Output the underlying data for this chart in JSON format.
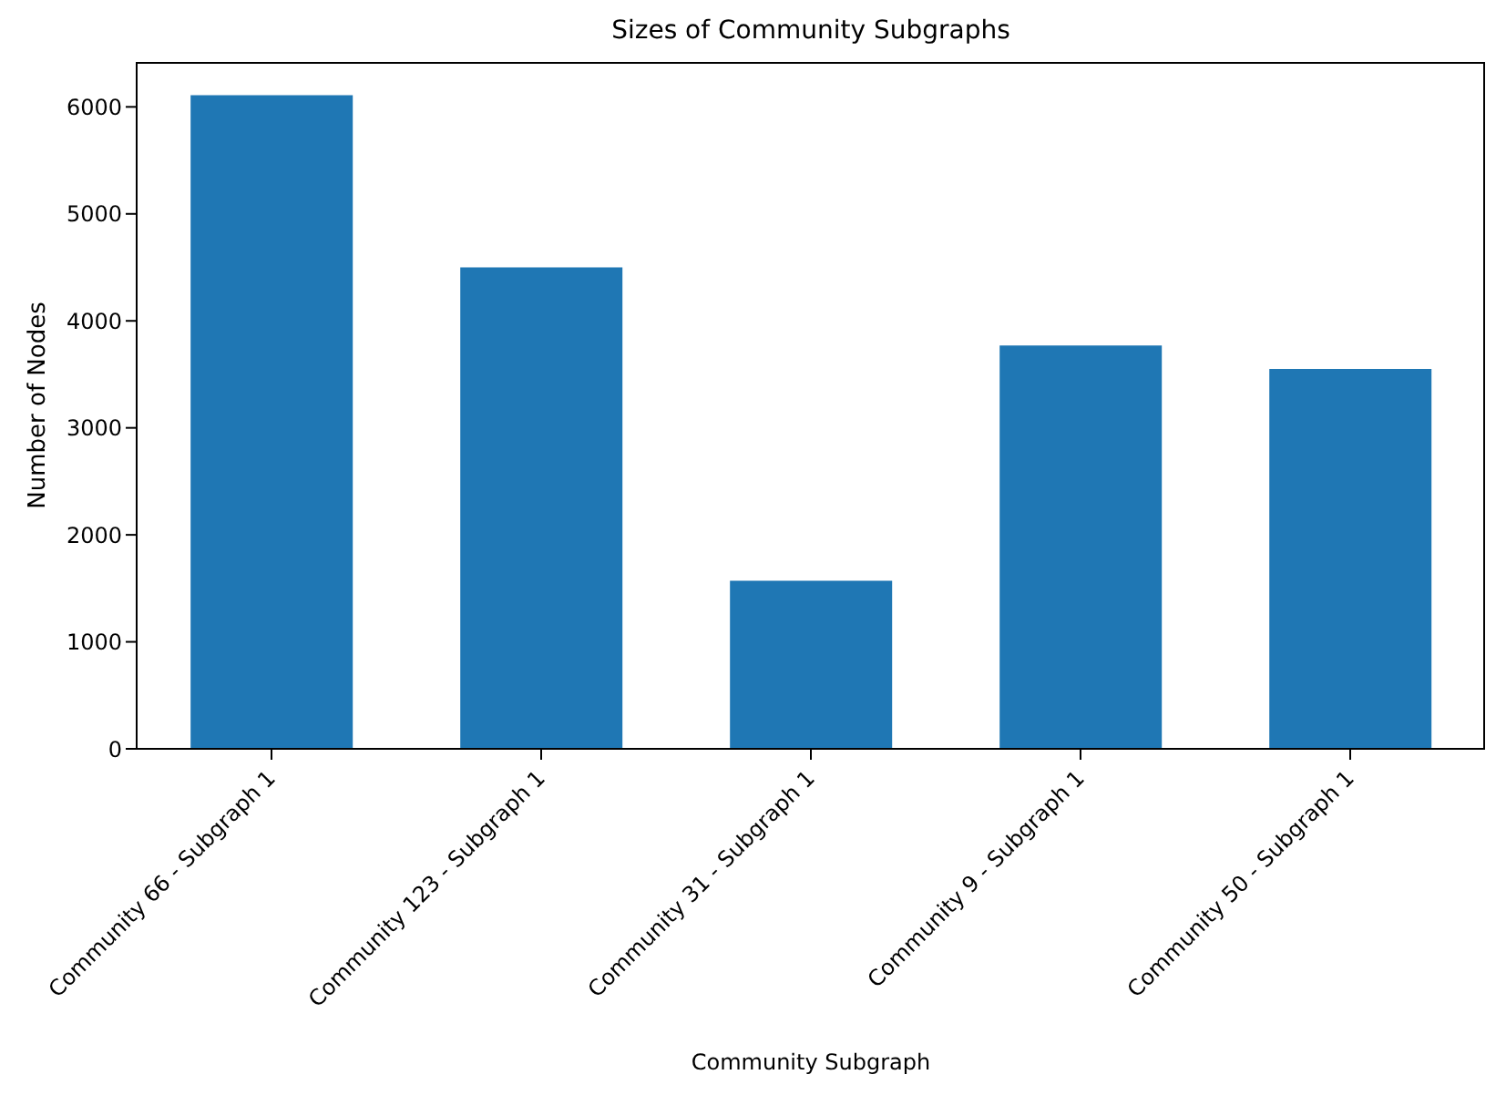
{
  "chart_data": {
    "type": "bar",
    "title": "Sizes of Community Subgraphs",
    "xlabel": "Community Subgraph",
    "ylabel": "Number of Nodes",
    "categories": [
      "Community 66 - Subgraph 1",
      "Community 123 - Subgraph 1",
      "Community 31 - Subgraph 1",
      "Community 9 - Subgraph 1",
      "Community 50 - Subgraph 1"
    ],
    "values": [
      6110,
      4500,
      1570,
      3770,
      3550
    ],
    "color": "#1f77b4",
    "ylim": [
      0,
      6420
    ],
    "yticks": [
      0,
      1000,
      2000,
      3000,
      4000,
      5000,
      6000
    ],
    "grid": false,
    "legend": false
  }
}
